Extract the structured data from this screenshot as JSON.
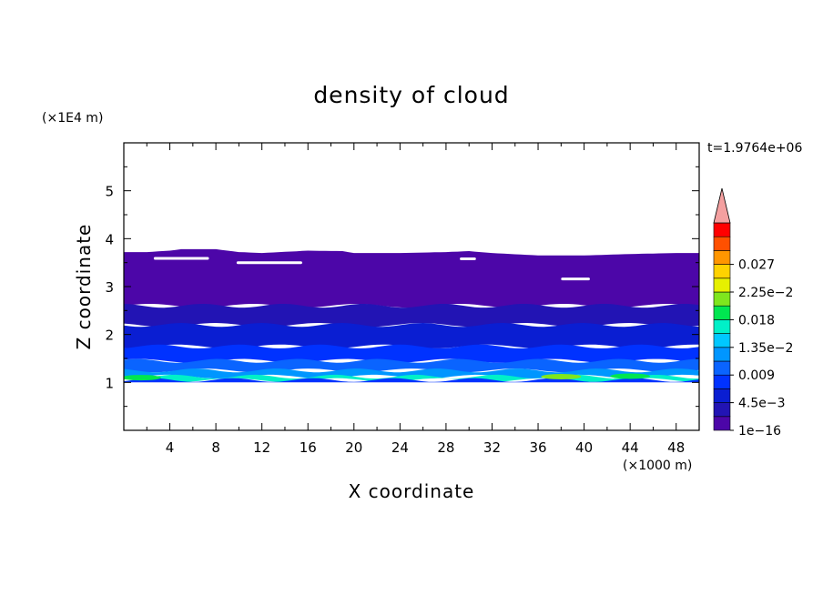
{
  "chart_data": {
    "type": "heatmap",
    "title": "density of cloud",
    "xlabel": "X coordinate",
    "ylabel": "Z coordinate",
    "x_unit": "(×1000 m)",
    "y_unit": "(×1E4 m)",
    "time_label": "t=1.9764e+06",
    "xlim": [
      0,
      50
    ],
    "ylim": [
      0,
      6
    ],
    "x_ticks": [
      4,
      8,
      12,
      16,
      20,
      24,
      28,
      32,
      36,
      40,
      44,
      48
    ],
    "x_tick_labels": [
      "4",
      "8",
      "12",
      "16",
      "20",
      "24",
      "28",
      "32",
      "36",
      "40",
      "44",
      "48"
    ],
    "y_ticks": [
      1,
      2,
      3,
      4,
      5
    ],
    "y_tick_labels": [
      "1",
      "2",
      "3",
      "4",
      "5"
    ],
    "colorbar": {
      "levels": [
        1e-16,
        0.00225,
        0.0045,
        0.00675,
        0.009,
        0.01125,
        0.0135,
        0.01575,
        0.018,
        0.02025,
        0.0225,
        0.02475,
        0.027,
        0.02925,
        0.0315
      ],
      "labels": [
        "1e−16",
        "4.5e−3",
        "0.009",
        "1.35e−2",
        "0.018",
        "2.25e−2",
        "0.027"
      ],
      "label_levels": [
        1e-16,
        0.0045,
        0.009,
        0.0135,
        0.018,
        0.0225,
        0.027
      ],
      "colors": [
        "#4c06a8",
        "#2214b4",
        "#0a1ed2",
        "#0032ff",
        "#0a64ff",
        "#0096ff",
        "#00c8ff",
        "#00f0c8",
        "#00e650",
        "#7fe61e",
        "#e6f000",
        "#ffd200",
        "#ff9600",
        "#ff5000",
        "#ff0000"
      ],
      "overflow_color": "#f4a0a0"
    },
    "field": {
      "cloud_base": 1.0,
      "cloud_top_profile": {
        "x": [
          0,
          2,
          4,
          5,
          8,
          10,
          12,
          16,
          19,
          20,
          24,
          28,
          30,
          32,
          36,
          40,
          44,
          48,
          50
        ],
        "z": [
          3.72,
          3.72,
          3.75,
          3.78,
          3.78,
          3.72,
          3.7,
          3.75,
          3.74,
          3.7,
          3.7,
          3.72,
          3.74,
          3.7,
          3.65,
          3.65,
          3.68,
          3.7,
          3.7
        ]
      },
      "layers": [
        {
          "z_bottom": 2.6,
          "z_top": 3.72,
          "density": 0.0005
        },
        {
          "z_bottom": 2.2,
          "z_top": 2.6,
          "density": 0.0025
        },
        {
          "z_bottom": 1.75,
          "z_top": 2.2,
          "density": 0.005
        },
        {
          "z_bottom": 1.45,
          "z_top": 1.75,
          "density": 0.0075
        },
        {
          "z_bottom": 1.25,
          "z_top": 1.45,
          "density": 0.0105
        },
        {
          "z_bottom": 1.12,
          "z_top": 1.25,
          "density": 0.0125
        },
        {
          "z_bottom": 1.05,
          "z_top": 1.12,
          "density": 0.016
        },
        {
          "z_bottom": 1.0,
          "z_top": 1.05,
          "density": 0.0085
        }
      ],
      "bright_patches": [
        {
          "x": 1.5,
          "z": 1.1,
          "density": 0.02
        },
        {
          "x": 38,
          "z": 1.12,
          "density": 0.021
        },
        {
          "x": 44,
          "z": 1.13,
          "density": 0.018
        }
      ],
      "clear_holes": [
        {
          "x0": 2.6,
          "x1": 7.4,
          "z": 3.58
        },
        {
          "x0": 9.8,
          "x1": 15.5,
          "z": 3.49
        },
        {
          "x0": 29.2,
          "x1": 30.6,
          "z": 3.57
        },
        {
          "x0": 38.0,
          "x1": 40.5,
          "z": 3.15
        }
      ]
    }
  }
}
